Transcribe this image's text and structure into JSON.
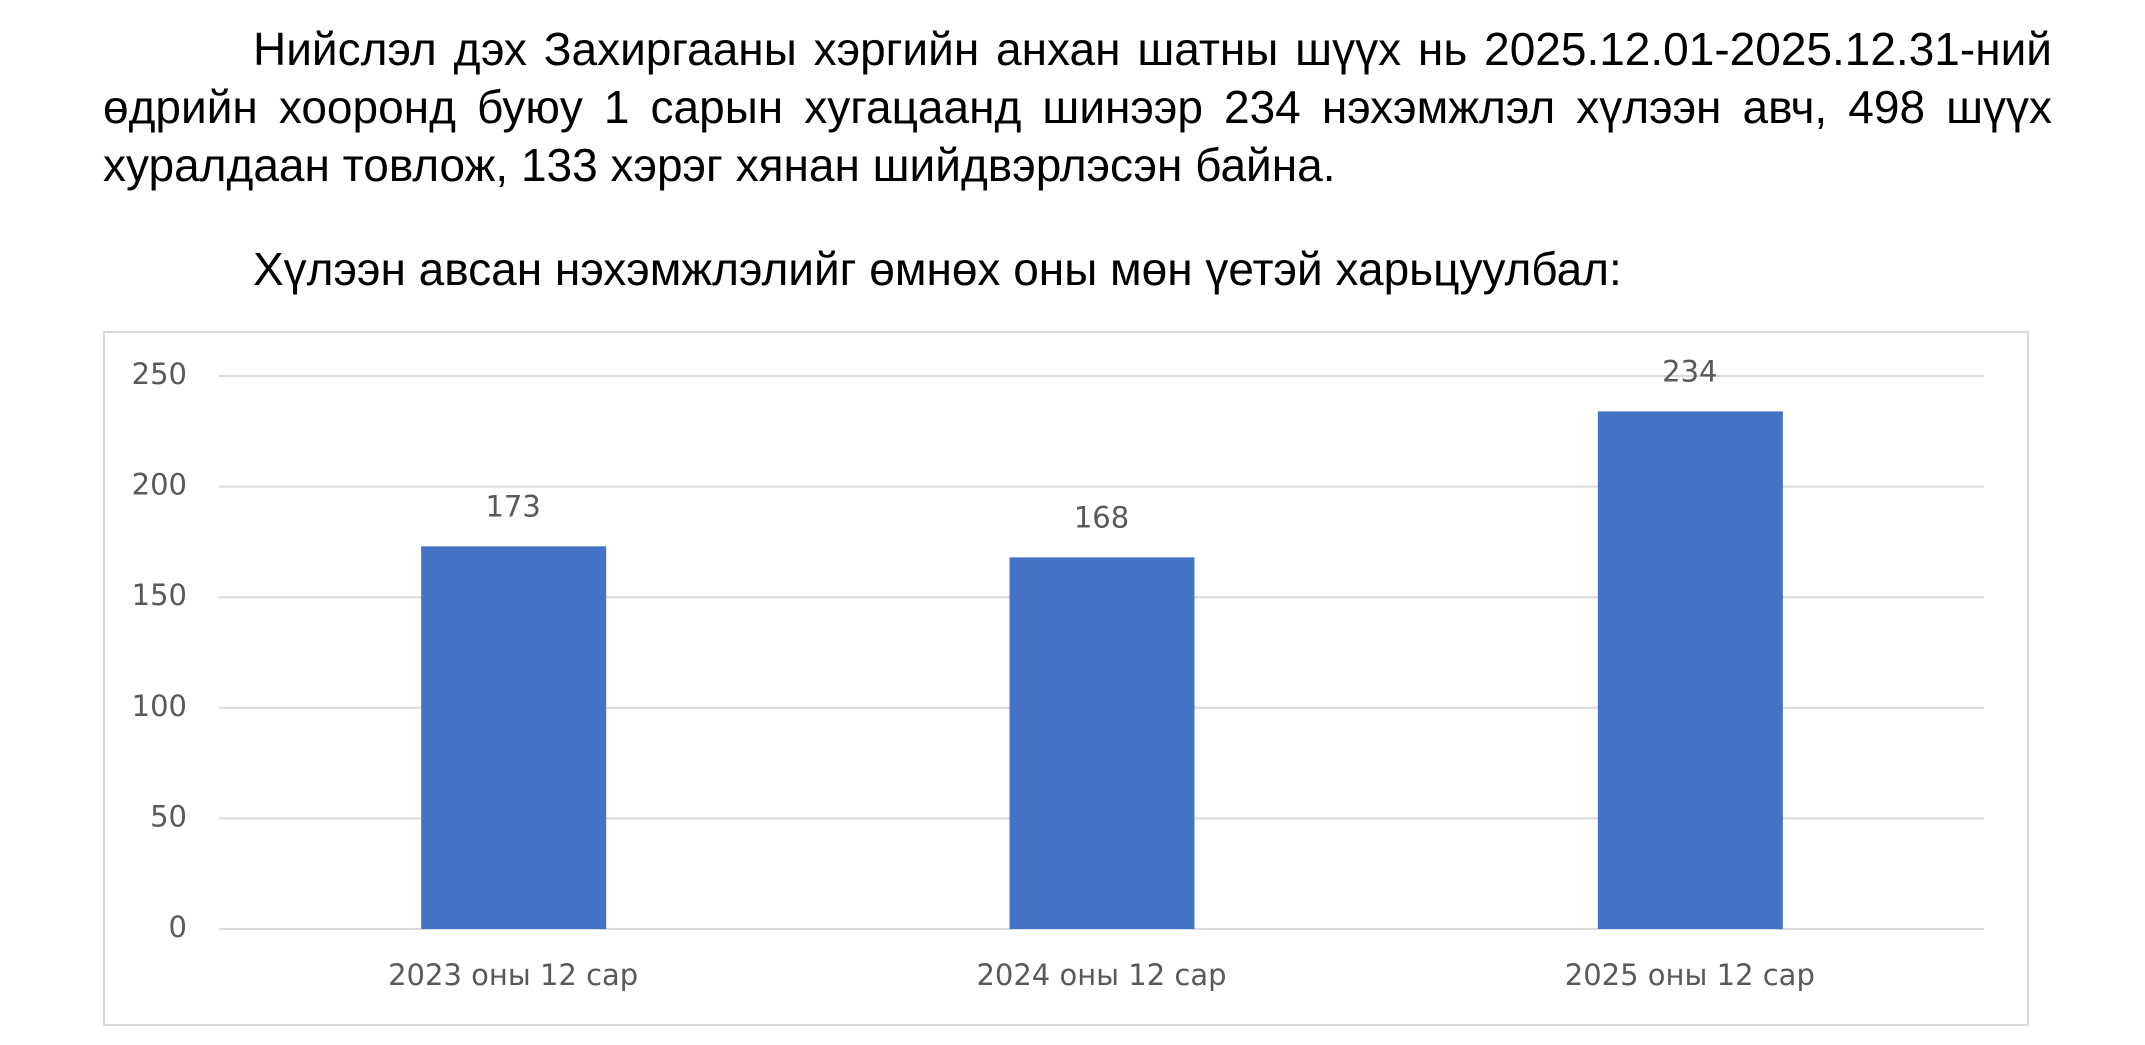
{
  "paragraphs": [
    "Нийслэл дэх Захиргааны хэргийн анхан шатны шүүх нь 2025.12.01-2025.12.31-ний өдрийн хооронд буюу 1 сарын хугацаанд шинээр 234 нэхэмжлэл хүлээн авч, 498 шүүх хуралдаан товлож, 133 хэрэг хянан шийдвэрлэсэн байна.",
    "Хүлээн авсан нэхэмжлэлийг өмнөх оны мөн үетэй харьцуулбал:"
  ],
  "chart_data": {
    "type": "bar",
    "categories": [
      "2023 оны 12 сар",
      "2024 оны 12 сар",
      "2025 оны 12 сар"
    ],
    "values": [
      173,
      168,
      234
    ],
    "color": "#4472c4",
    "ylim": [
      0,
      250
    ],
    "yticks": [
      0,
      50,
      100,
      150,
      200,
      250
    ],
    "grid": true
  }
}
